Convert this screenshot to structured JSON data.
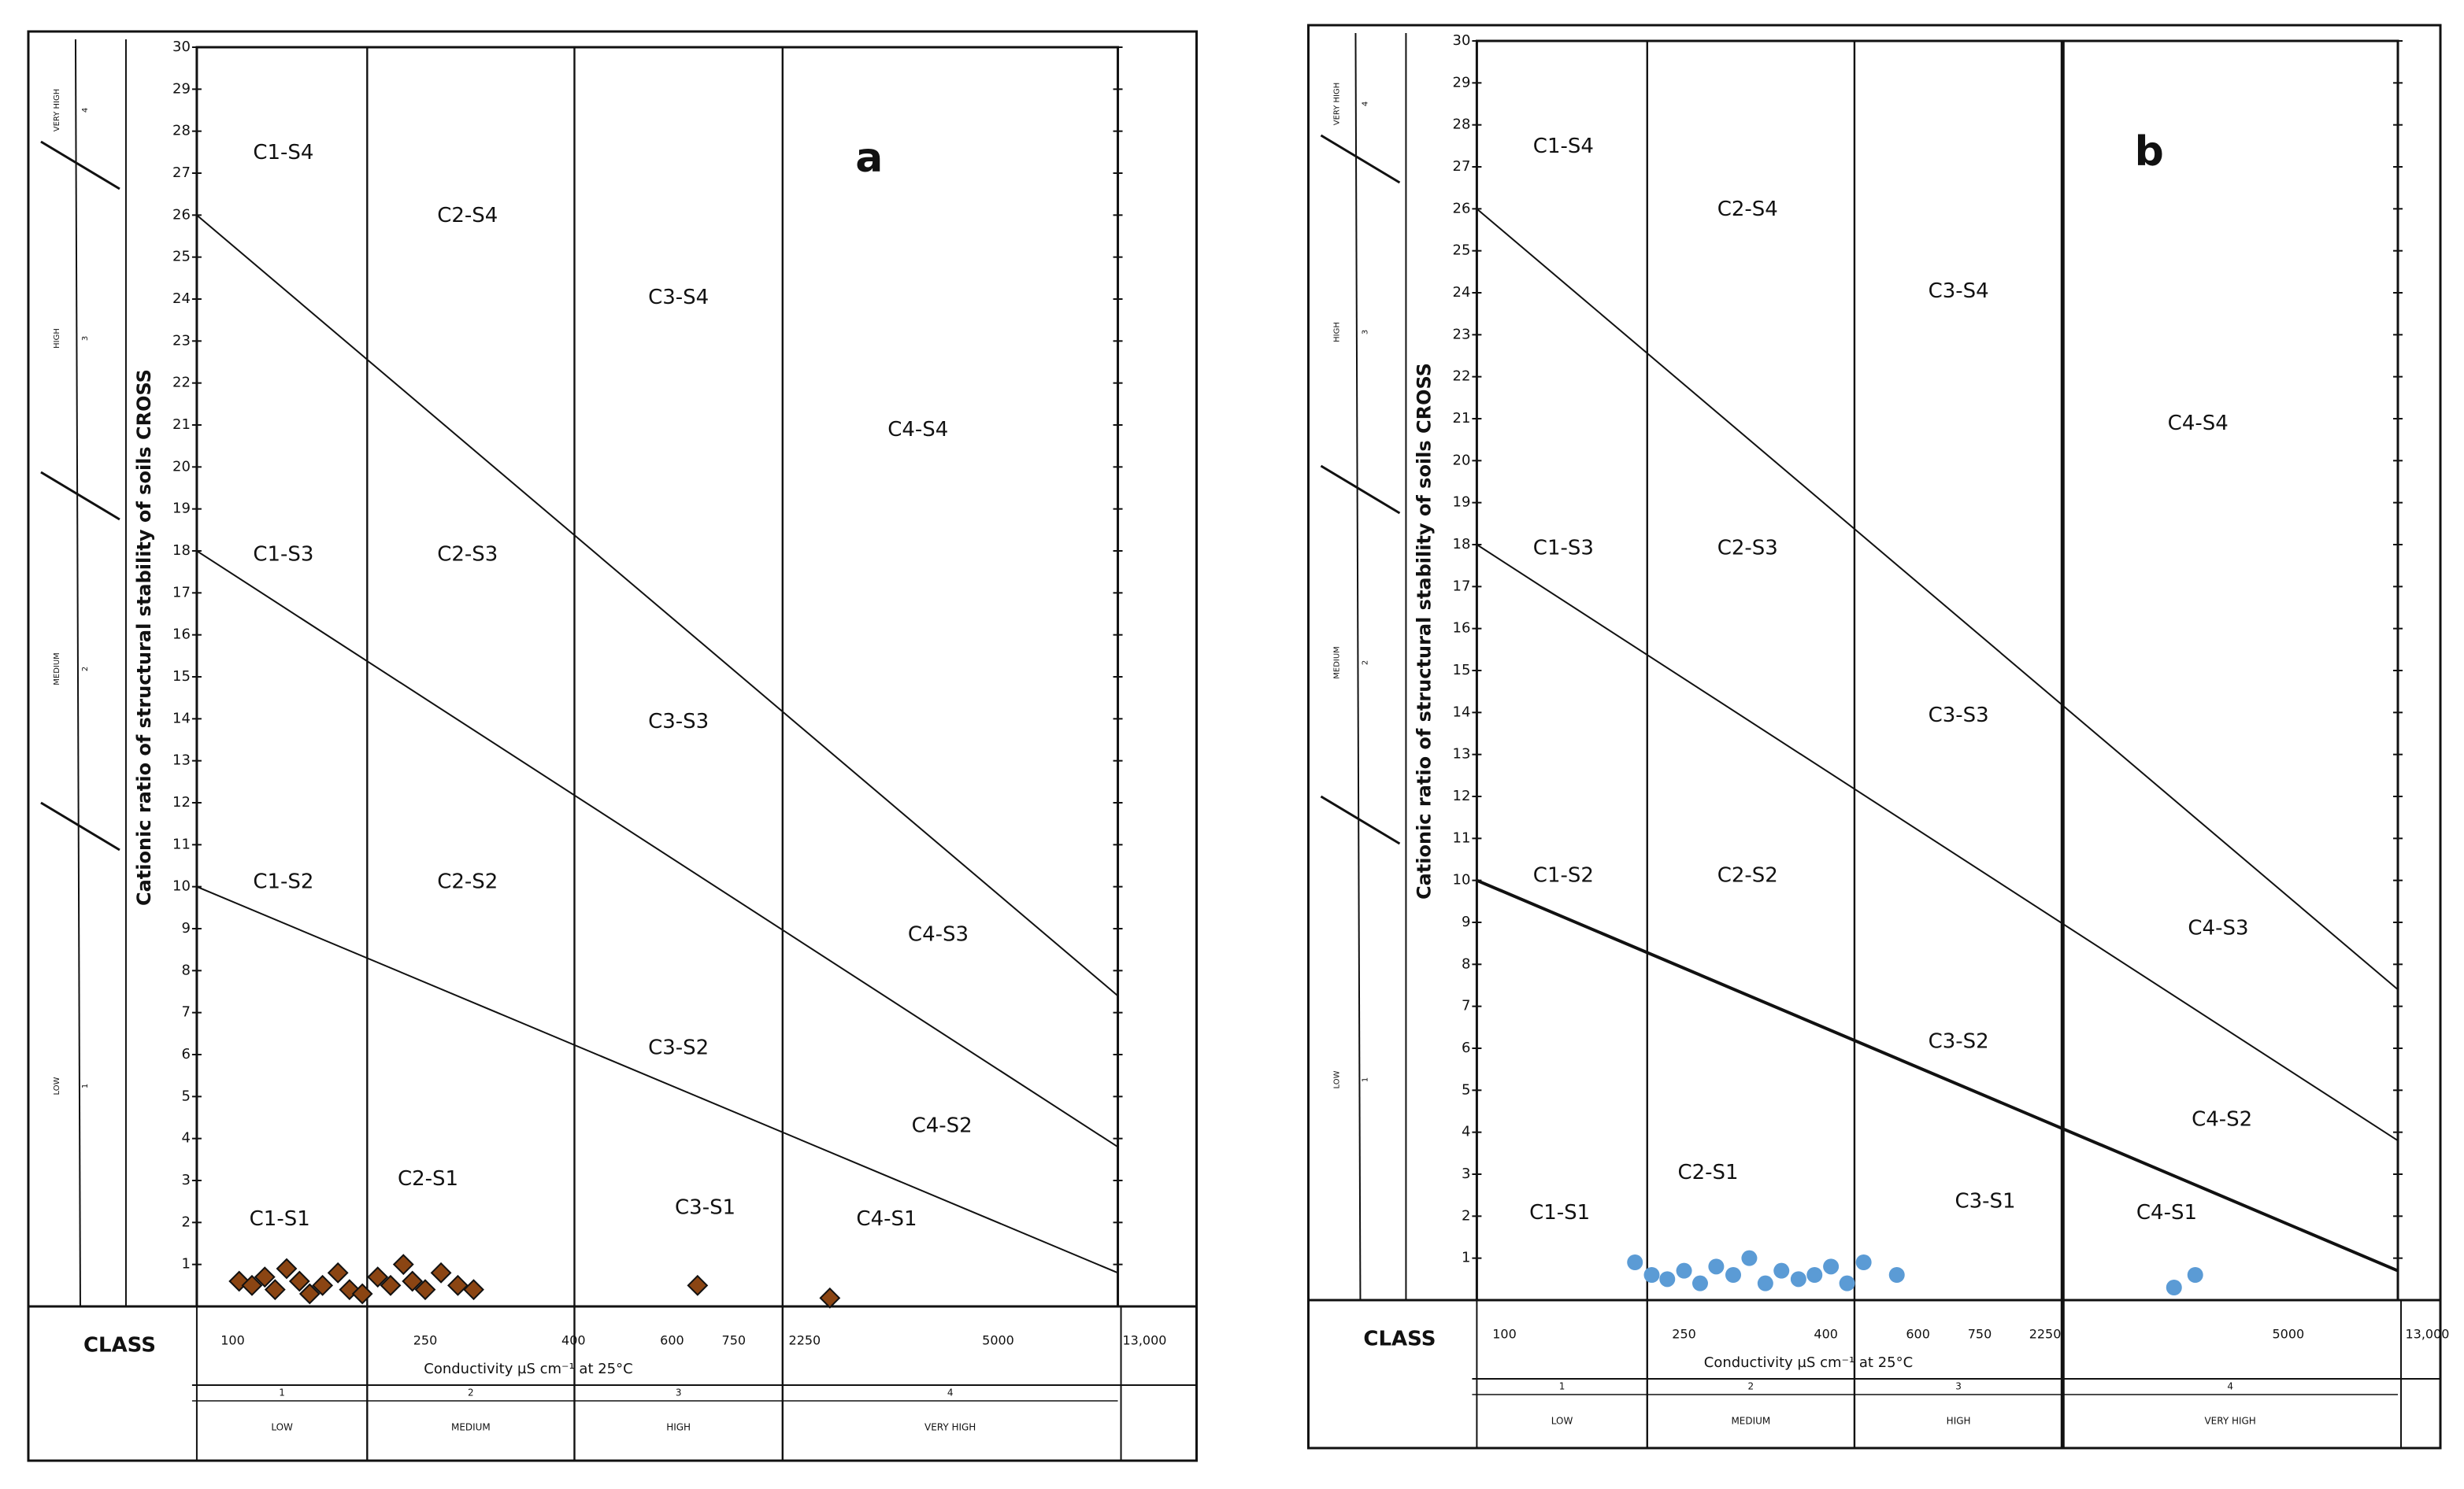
{
  "chart_data": [
    {
      "type": "scatter",
      "label": "a",
      "y_label": "Cationic ratio of structural stability of soils CROSS",
      "x_label": "Conductivity µS cm⁻¹ at 25°C",
      "class_label": "CLASS",
      "ylim": [
        0,
        30
      ],
      "yticks": [
        1,
        2,
        3,
        4,
        5,
        6,
        7,
        8,
        9,
        10,
        11,
        12,
        13,
        14,
        15,
        16,
        17,
        18,
        19,
        20,
        21,
        22,
        23,
        24,
        25,
        26,
        27,
        28,
        29,
        30
      ],
      "xticks": [
        100,
        250,
        400,
        600,
        750,
        2250,
        5000,
        {
          "value": 13000,
          "label": "13,000"
        }
      ],
      "salinity_classes": [
        {
          "number": 1,
          "name": "LOW"
        },
        {
          "number": 2,
          "name": "MEDIUM"
        },
        {
          "number": 3,
          "name": "HIGH"
        },
        {
          "number": 4,
          "name": "VERY HIGH"
        }
      ],
      "sodium_classes": [
        {
          "number": 4,
          "name": "VERY HIGH"
        },
        {
          "number": 3,
          "name": "HIGH"
        },
        {
          "number": 2,
          "name": "MEDIUM"
        },
        {
          "number": 1,
          "name": "LOW"
        }
      ],
      "regions": [
        "C1-S4",
        "C2-S4",
        "C3-S4",
        "C4-S4",
        "C1-S3",
        "C2-S3",
        "C3-S3",
        "C4-S3",
        "C1-S2",
        "C2-S2",
        "C3-S2",
        "C4-S2",
        "C1-S1",
        "C2-S1",
        "C3-S1",
        "C4-S1"
      ],
      "boundary_lines": [
        [
          26,
          7.4
        ],
        [
          18,
          3.8
        ],
        [
          10,
          0.8
        ]
      ],
      "marker": "diamond",
      "color": "#8b4513",
      "x": [
        105,
        115,
        125,
        133,
        142,
        152,
        160,
        170,
        182,
        191,
        201,
        213,
        223,
        233,
        240,
        250,
        266,
        283,
        299,
        662,
        2608
      ],
      "values": [
        0.6,
        0.5,
        0.7,
        0.4,
        0.9,
        0.6,
        0.3,
        0.5,
        0.8,
        0.4,
        0.3,
        0.7,
        0.5,
        1.0,
        0.6,
        0.4,
        0.8,
        0.5,
        0.4,
        0.5,
        0.2
      ]
    },
    {
      "type": "scatter",
      "label": "b",
      "y_label": "Cationic ratio of structural stability of soils CROSS",
      "x_label": "Conductivity µS cm⁻¹ at 25°C",
      "class_label": "CLASS",
      "ylim": [
        0,
        30
      ],
      "yticks": [
        1,
        2,
        3,
        4,
        5,
        6,
        7,
        8,
        9,
        10,
        11,
        12,
        13,
        14,
        15,
        16,
        17,
        18,
        19,
        20,
        21,
        22,
        23,
        24,
        25,
        26,
        27,
        28,
        29,
        30
      ],
      "xticks": [
        100,
        250,
        400,
        600,
        750,
        2250,
        5000,
        {
          "value": 13000,
          "label": "13,000"
        }
      ],
      "salinity_classes": [
        {
          "number": 1,
          "name": "LOW"
        },
        {
          "number": 2,
          "name": "MEDIUM"
        },
        {
          "number": 3,
          "name": "HIGH"
        },
        {
          "number": 4,
          "name": "VERY HIGH"
        }
      ],
      "sodium_classes": [
        {
          "number": 4,
          "name": "VERY HIGH"
        },
        {
          "number": 3,
          "name": "HIGH"
        },
        {
          "number": 2,
          "name": "MEDIUM"
        },
        {
          "number": 1,
          "name": "LOW"
        }
      ],
      "regions": [
        "C1-S4",
        "C2-S4",
        "C3-S4",
        "C4-S4",
        "C1-S3",
        "C2-S3",
        "C3-S3",
        "C4-S3",
        "C1-S2",
        "C2-S2",
        "C3-S2",
        "C4-S2",
        "C1-S1",
        "C2-S1",
        "C3-S1",
        "C4-S1"
      ],
      "boundary_lines": [
        [
          26,
          7.4
        ],
        [
          18,
          3.8
        ],
        [
          10,
          0.7
        ]
      ],
      "marker": "circle",
      "color": "#5b9bd5",
      "x": [
        209,
        223,
        236,
        250,
        267,
        284,
        302,
        319,
        336,
        353,
        371,
        388,
        411,
        446,
        482,
        554,
        3708,
        3948
      ],
      "values": [
        0.9,
        0.6,
        0.5,
        0.7,
        0.4,
        0.8,
        0.6,
        1.0,
        0.4,
        0.7,
        0.5,
        0.6,
        0.8,
        0.4,
        0.9,
        0.6,
        0.3,
        0.6
      ]
    }
  ]
}
